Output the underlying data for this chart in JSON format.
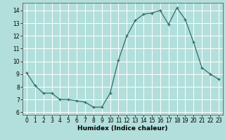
{
  "x": [
    0,
    1,
    2,
    3,
    4,
    5,
    6,
    7,
    8,
    9,
    10,
    11,
    12,
    13,
    14,
    15,
    16,
    17,
    18,
    19,
    20,
    21,
    22,
    23
  ],
  "y": [
    9.1,
    8.1,
    7.5,
    7.5,
    7.0,
    7.0,
    6.9,
    6.8,
    6.4,
    6.4,
    7.5,
    10.1,
    12.0,
    13.2,
    13.7,
    13.8,
    14.0,
    12.9,
    14.2,
    13.3,
    11.5,
    9.5,
    9.0,
    8.6
  ],
  "xlabel": "Humidex (Indice chaleur)",
  "ylim": [
    5.8,
    14.6
  ],
  "yticks": [
    6,
    7,
    8,
    9,
    10,
    11,
    12,
    13,
    14
  ],
  "xlim": [
    -0.5,
    23.5
  ],
  "line_color": "#2d6e6e",
  "marker": "+",
  "bg_color": "#b2dfdb",
  "grid_color": "#ffffff",
  "label_fontsize": 6.5,
  "tick_fontsize": 5.5
}
